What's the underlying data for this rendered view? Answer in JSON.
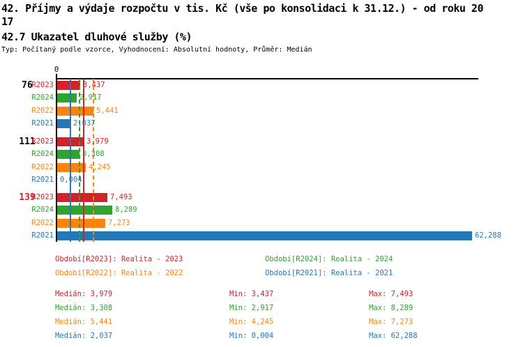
{
  "header": {
    "title_line1": "42. Příjmy a výdaje rozpočtu v tis. Kč (vše po konsolidaci k 31.12.) - od roku 20",
    "title_line2": "17",
    "subtitle": "42.7 Ukazatel dluhové služby (%)",
    "meta_line": "Typ: Počítaný podle vzorce, Vyhodnocení: Absolutní hodnoty, Průměr: Medián"
  },
  "colors": {
    "R2023": "#d2232a",
    "R2024": "#2ea32e",
    "R2022": "#fc830e",
    "R2021": "#2478b5",
    "axis": "#000000",
    "group_label_default": "#000000",
    "group_label_highlight": "#d2232a"
  },
  "chart_data": {
    "type": "bar",
    "orientation": "horizontal",
    "title": "42.7 Ukazatel dluhové služby (%)",
    "axis_zero_label": "0",
    "x_range_units": [
      0,
      63.4
    ],
    "grid": false,
    "series_order": [
      "R2023",
      "R2024",
      "R2022",
      "R2021"
    ],
    "groups": [
      {
        "label": "76",
        "highlight": false,
        "bars": [
          {
            "series": "R2023",
            "value": 3.437,
            "display": "3,437"
          },
          {
            "series": "R2024",
            "value": 2.917,
            "display": "2,917"
          },
          {
            "series": "R2022",
            "value": 5.441,
            "display": "5,441"
          },
          {
            "series": "R2021",
            "value": 2.037,
            "display": "2,037"
          }
        ]
      },
      {
        "label": "111",
        "highlight": false,
        "bars": [
          {
            "series": "R2023",
            "value": 3.979,
            "display": "3,979"
          },
          {
            "series": "R2024",
            "value": 3.308,
            "display": "3,308"
          },
          {
            "series": "R2022",
            "value": 4.245,
            "display": "4,245"
          },
          {
            "series": "R2021",
            "value": 0.004,
            "display": "0,004"
          }
        ]
      },
      {
        "label": "139",
        "highlight": true,
        "bars": [
          {
            "series": "R2023",
            "value": 7.493,
            "display": "7,493"
          },
          {
            "series": "R2024",
            "value": 8.289,
            "display": "8,289"
          },
          {
            "series": "R2022",
            "value": 7.273,
            "display": "7,273"
          },
          {
            "series": "R2021",
            "value": 62.288,
            "display": "62,288"
          }
        ]
      }
    ],
    "median_lines": [
      {
        "series": "R2021",
        "value": 2.037
      },
      {
        "series": "R2024",
        "value": 3.308
      },
      {
        "series": "R2023",
        "value": 3.979
      },
      {
        "series": "R2022",
        "value": 5.441
      }
    ]
  },
  "legend": {
    "items": [
      {
        "series": "R2023",
        "text": "Období[R2023]: Realita - 2023"
      },
      {
        "series": "R2024",
        "text": "Období[R2024]: Realita - 2024"
      },
      {
        "series": "R2022",
        "text": "Období[R2022]: Realita - 2022"
      },
      {
        "series": "R2021",
        "text": "Období[R2021]: Realita - 2021"
      }
    ]
  },
  "stats": {
    "labels": {
      "median": "Medián",
      "min": "Min",
      "max": "Max"
    },
    "rows": [
      {
        "series": "R2023",
        "median": "3,979",
        "min": "3,437",
        "max": "7,493"
      },
      {
        "series": "R2024",
        "median": "3,308",
        "min": "2,917",
        "max": "8,289"
      },
      {
        "series": "R2022",
        "median": "5,441",
        "min": "4,245",
        "max": "7,273"
      },
      {
        "series": "R2021",
        "median": "2,037",
        "min": "0,004",
        "max": "62,288"
      }
    ]
  }
}
